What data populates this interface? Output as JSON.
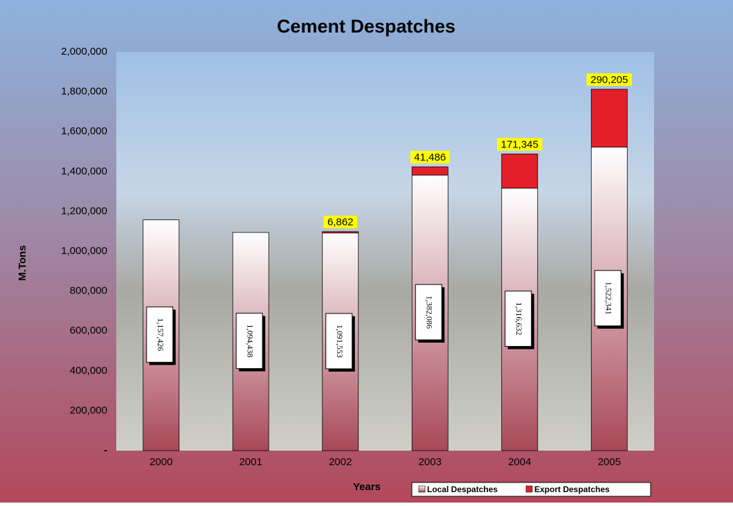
{
  "chart_data": {
    "type": "stacked_bar",
    "title": "Cement Despatches",
    "x_label": "Years",
    "y_label": "M.Tons",
    "categories": [
      "2000",
      "2001",
      "2002",
      "2003",
      "2004",
      "2005"
    ],
    "series": [
      {
        "name": "Local Despatches",
        "color": "#a84858",
        "values": [
          1157426,
          1094438,
          1091553,
          1382086,
          1316632,
          1522341
        ],
        "value_labels": [
          "1,157,426",
          "1,094,438",
          "1,091,553",
          "1,382,086",
          "1,316,632",
          "1,522,341"
        ]
      },
      {
        "name": "Export Despatches",
        "color": "#e3202a",
        "values": [
          null,
          null,
          6862,
          41486,
          171345,
          290205
        ],
        "value_labels": [
          null,
          null,
          "6,862",
          "41,486",
          "171,345",
          "290,205"
        ]
      }
    ],
    "ylim": [
      0,
      2000000
    ],
    "yticks": [
      {
        "value": 0,
        "label": "-"
      },
      {
        "value": 200000,
        "label": "200,000"
      },
      {
        "value": 400000,
        "label": "400,000"
      },
      {
        "value": 600000,
        "label": "600,000"
      },
      {
        "value": 800000,
        "label": "800,000"
      },
      {
        "value": 1000000,
        "label": "1,000,000"
      },
      {
        "value": 1200000,
        "label": "1,200,000"
      },
      {
        "value": 1400000,
        "label": "1,400,000"
      },
      {
        "value": 1600000,
        "label": "1,600,000"
      },
      {
        "value": 1800000,
        "label": "1,800,000"
      },
      {
        "value": 2000000,
        "label": "2,000,000"
      }
    ],
    "legend": "bottom-right"
  }
}
